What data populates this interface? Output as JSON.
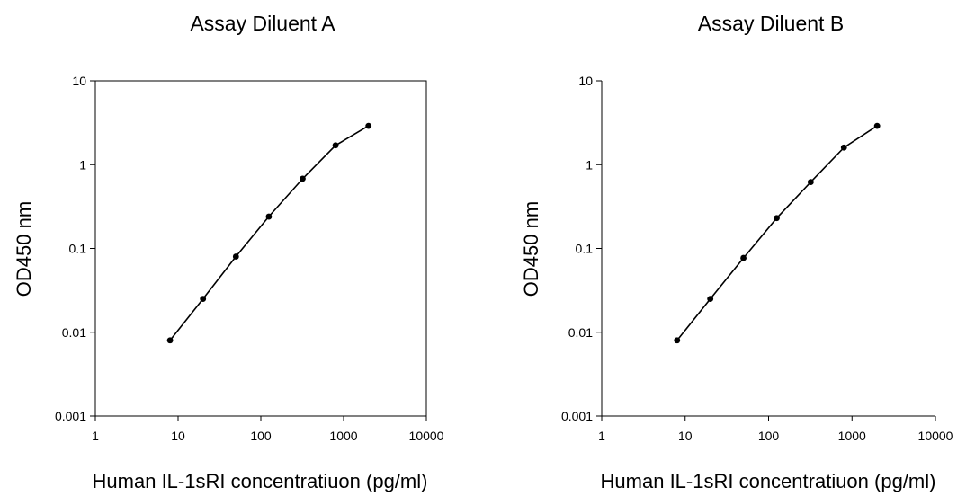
{
  "chart_data": [
    {
      "type": "line",
      "title": "Assay Diluent A",
      "xlabel": "Human IL-1sRI concentratiuon (pg/ml)",
      "ylabel": "OD450 nm",
      "xscale": "log",
      "yscale": "log",
      "xlim": [
        1,
        10000
      ],
      "ylim": [
        0.001,
        10
      ],
      "x_ticks": [
        "1",
        "10",
        "100",
        "1000",
        "10000"
      ],
      "y_ticks": [
        "0.001",
        "0.01",
        "0.1",
        "1",
        "10"
      ],
      "grid": false,
      "series": [
        {
          "x": [
            8,
            20,
            50,
            125,
            320,
            800,
            2000
          ],
          "y": [
            0.008,
            0.025,
            0.08,
            0.24,
            0.68,
            1.7,
            2.9
          ]
        }
      ]
    },
    {
      "type": "line",
      "title": "Assay Diluent B",
      "xlabel": "Human IL-1sRI concentratiuon (pg/ml)",
      "ylabel": "OD450 nm",
      "xscale": "log",
      "yscale": "log",
      "xlim": [
        1,
        10000
      ],
      "ylim": [
        0.001,
        10
      ],
      "x_ticks": [
        "1",
        "10",
        "100",
        "1000",
        "10000"
      ],
      "y_ticks": [
        "0.001",
        "0.01",
        "0.1",
        "1",
        "10"
      ],
      "grid": false,
      "series": [
        {
          "x": [
            8,
            20,
            50,
            125,
            320,
            800,
            2000
          ],
          "y": [
            0.008,
            0.025,
            0.077,
            0.23,
            0.62,
            1.6,
            2.9
          ]
        }
      ]
    }
  ]
}
